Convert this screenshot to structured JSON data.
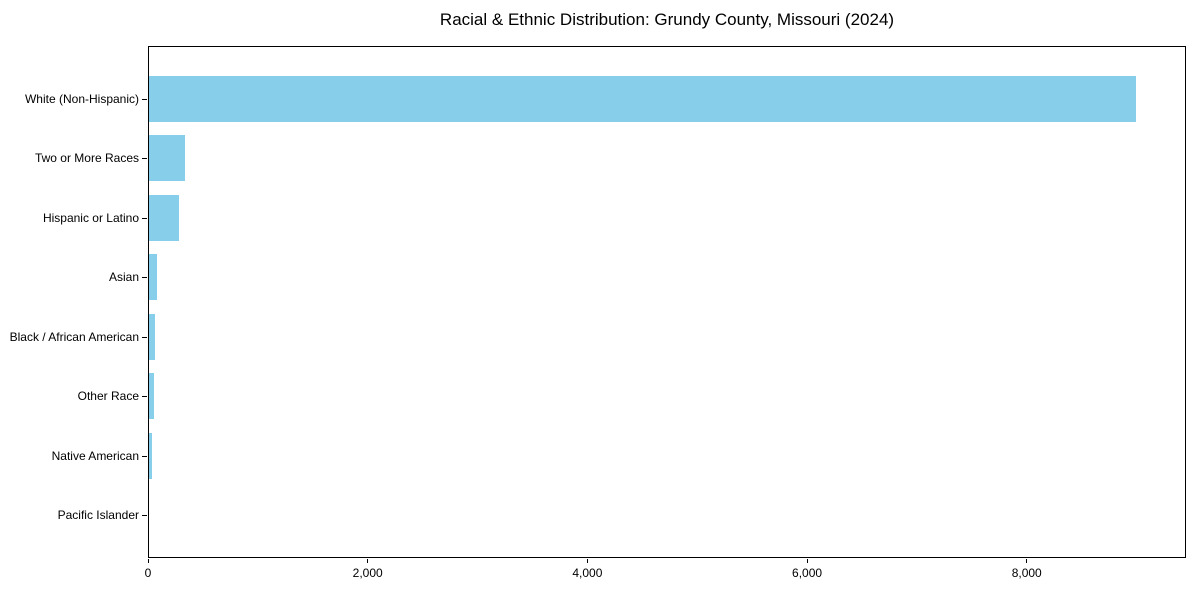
{
  "title": "Racial & Ethnic Distribution: Grundy County, Missouri (2024)",
  "chart_data": {
    "type": "bar",
    "orientation": "horizontal",
    "title": "Racial & Ethnic Distribution: Grundy County, Missouri (2024)",
    "categories": [
      "White (Non-Hispanic)",
      "Two or More Races",
      "Hispanic or Latino",
      "Asian",
      "Black / African American",
      "Other Race",
      "Native American",
      "Pacific Islander"
    ],
    "values": [
      9000,
      325,
      275,
      75,
      55,
      48,
      30,
      0
    ],
    "xlabel": "",
    "ylabel": "",
    "xlim": [
      0,
      9450
    ],
    "xticks": [
      0,
      2000,
      4000,
      6000,
      8000
    ],
    "xtick_labels": [
      "0",
      "2,000",
      "4,000",
      "6,000",
      "8,000"
    ],
    "bar_color": "#87CEEB",
    "axis_color": "#000000",
    "background_color": "#ffffff",
    "grid": false,
    "legend": null
  }
}
